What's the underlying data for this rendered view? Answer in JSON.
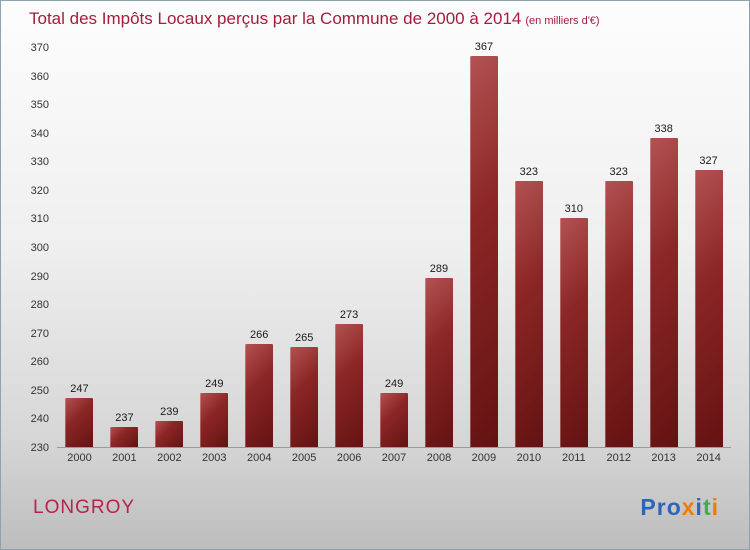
{
  "header": {
    "title": "Total des Impôts Locaux perçus par la Commune de 2000 à 2014",
    "subtitle": "(en milliers d'€)"
  },
  "footer": {
    "commune": "LONGROY",
    "logo": {
      "name": "Proxiti",
      "letters": [
        {
          "ch": "P",
          "color": "#2e64b5"
        },
        {
          "ch": "r",
          "color": "#2e64b5"
        },
        {
          "ch": "o",
          "color": "#2e64b5"
        },
        {
          "ch": "x",
          "color": "#f07c00"
        },
        {
          "ch": "i",
          "color": "#2e64b5"
        },
        {
          "ch": "t",
          "color": "#3fae49"
        },
        {
          "ch": "i",
          "color": "#f07c00"
        }
      ]
    }
  },
  "colors": {
    "title_text": "#a41c3e",
    "commune_text": "#b5234f",
    "bar_light": "#b25252",
    "bar_dark": "#641212"
  },
  "chart_data": {
    "type": "bar",
    "title": "Total des Impôts Locaux perçus par la Commune de 2000 à 2014",
    "subtitle": "(en milliers d'€)",
    "categories": [
      "2000",
      "2001",
      "2002",
      "2003",
      "2004",
      "2005",
      "2006",
      "2007",
      "2008",
      "2009",
      "2010",
      "2011",
      "2012",
      "2013",
      "2014"
    ],
    "values": [
      247,
      237,
      239,
      249,
      266,
      265,
      273,
      249,
      289,
      367,
      323,
      310,
      323,
      338,
      327
    ],
    "xlabel": "",
    "ylabel": "",
    "ylim": [
      230,
      370
    ],
    "ytick_step": 10,
    "grid": false,
    "legend": "none",
    "bar_color": "maroon-gradient"
  }
}
